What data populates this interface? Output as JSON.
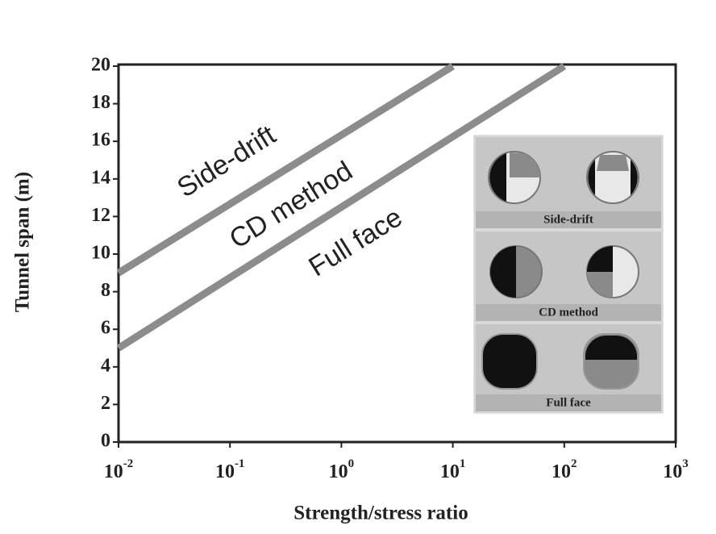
{
  "chart_data": {
    "type": "line",
    "xlabel": "Strength/stress ratio",
    "ylabel": "Tunnel span (m)",
    "xscale": "log",
    "xlim": [
      0.01,
      1000
    ],
    "xticks": [
      {
        "value": 0.01,
        "label": "10",
        "exponent": "-2"
      },
      {
        "value": 0.1,
        "label": "10",
        "exponent": "-1"
      },
      {
        "value": 1,
        "label": "10",
        "exponent": "0"
      },
      {
        "value": 10,
        "label": "10",
        "exponent": "1"
      },
      {
        "value": 100,
        "label": "10",
        "exponent": "2"
      },
      {
        "value": 1000,
        "label": "10",
        "exponent": "3"
      }
    ],
    "ylim": [
      0,
      20
    ],
    "yticks": [
      0,
      2,
      4,
      6,
      8,
      10,
      12,
      14,
      16,
      18,
      20
    ],
    "series": [
      {
        "color": "#8c8c8c",
        "x": [
          0.01,
          10
        ],
        "values": [
          9,
          20
        ]
      },
      {
        "color": "#8c8c8c",
        "x": [
          0.01,
          100
        ],
        "values": [
          5,
          20
        ]
      }
    ],
    "annotations": [
      "Side-drift",
      "CD method",
      "Full face"
    ],
    "inset_panels": [
      "Side-drift",
      "CD method",
      "Full face"
    ]
  }
}
